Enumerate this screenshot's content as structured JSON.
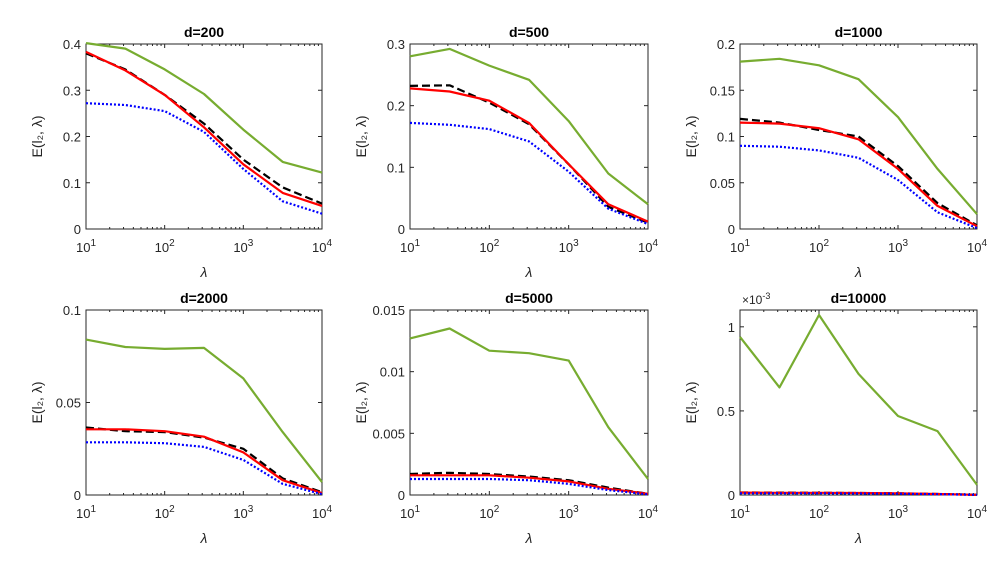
{
  "figure": {
    "x_label": "λ",
    "y_label": "E(l₂, λ)"
  },
  "colors": {
    "green": "#77ac30",
    "black": "#000000",
    "red": "#ff0000",
    "blue": "#0000ff",
    "axis": "#262626"
  },
  "chart_data": [
    {
      "type": "line",
      "title": "d=200",
      "xscale": "log",
      "xlim": [
        10,
        10000
      ],
      "ylim": [
        0,
        0.4
      ],
      "yticks": [
        0,
        0.1,
        0.2,
        0.3,
        0.4
      ],
      "yticklabels": [
        "0",
        "0.1",
        "0.2",
        "0.3",
        "0.4"
      ],
      "xticks": [
        10,
        100,
        1000,
        10000
      ],
      "xticklabels": [
        "10^1",
        "10^2",
        "10^3",
        "10^4"
      ],
      "x": [
        10,
        31.6,
        100,
        316,
        1000,
        3162,
        10000
      ],
      "series": [
        {
          "color": "green",
          "style": "solid",
          "values": [
            0.402,
            0.39,
            0.345,
            0.292,
            0.215,
            0.145,
            0.122
          ]
        },
        {
          "color": "black",
          "style": "dashed",
          "values": [
            0.38,
            0.345,
            0.29,
            0.228,
            0.15,
            0.09,
            0.055
          ]
        },
        {
          "color": "red",
          "style": "solid",
          "values": [
            0.383,
            0.343,
            0.29,
            0.22,
            0.14,
            0.078,
            0.05
          ]
        },
        {
          "color": "blue",
          "style": "dotted",
          "values": [
            0.272,
            0.268,
            0.255,
            0.21,
            0.13,
            0.06,
            0.033
          ]
        }
      ]
    },
    {
      "type": "line",
      "title": "d=500",
      "xscale": "log",
      "xlim": [
        10,
        10000
      ],
      "ylim": [
        0,
        0.3
      ],
      "yticks": [
        0,
        0.1,
        0.2,
        0.3
      ],
      "yticklabels": [
        "0",
        "0.1",
        "0.2",
        "0.3"
      ],
      "xticks": [
        10,
        100,
        1000,
        10000
      ],
      "xticklabels": [
        "10^1",
        "10^2",
        "10^3",
        "10^4"
      ],
      "x": [
        10,
        31.6,
        100,
        316,
        1000,
        3162,
        10000
      ],
      "series": [
        {
          "color": "green",
          "style": "solid",
          "values": [
            0.28,
            0.292,
            0.265,
            0.242,
            0.175,
            0.09,
            0.04
          ]
        },
        {
          "color": "black",
          "style": "dashed",
          "values": [
            0.232,
            0.233,
            0.205,
            0.17,
            0.105,
            0.036,
            0.01
          ]
        },
        {
          "color": "red",
          "style": "solid",
          "values": [
            0.228,
            0.223,
            0.208,
            0.172,
            0.105,
            0.04,
            0.012
          ]
        },
        {
          "color": "blue",
          "style": "dotted",
          "values": [
            0.172,
            0.169,
            0.162,
            0.142,
            0.093,
            0.033,
            0.008
          ]
        }
      ]
    },
    {
      "type": "line",
      "title": "d=1000",
      "xscale": "log",
      "xlim": [
        10,
        10000
      ],
      "ylim": [
        0,
        0.2
      ],
      "yticks": [
        0,
        0.05,
        0.1,
        0.15,
        0.2
      ],
      "yticklabels": [
        "0",
        "0.05",
        "0.1",
        "0.15",
        "0.2"
      ],
      "xticks": [
        10,
        100,
        1000,
        10000
      ],
      "xticklabels": [
        "10^1",
        "10^2",
        "10^3",
        "10^4"
      ],
      "x": [
        10,
        31.6,
        100,
        316,
        1000,
        3162,
        10000
      ],
      "series": [
        {
          "color": "green",
          "style": "solid",
          "values": [
            0.181,
            0.184,
            0.177,
            0.162,
            0.121,
            0.065,
            0.016
          ]
        },
        {
          "color": "black",
          "style": "dashed",
          "values": [
            0.119,
            0.115,
            0.107,
            0.1,
            0.068,
            0.028,
            0.004
          ]
        },
        {
          "color": "red",
          "style": "solid",
          "values": [
            0.115,
            0.114,
            0.109,
            0.097,
            0.065,
            0.025,
            0.003
          ]
        },
        {
          "color": "blue",
          "style": "dotted",
          "values": [
            0.09,
            0.089,
            0.085,
            0.077,
            0.053,
            0.018,
            0.001
          ]
        }
      ]
    },
    {
      "type": "line",
      "title": "d=2000",
      "xscale": "log",
      "xlim": [
        10,
        10000
      ],
      "ylim": [
        0,
        0.1
      ],
      "yticks": [
        0,
        0.05,
        0.1
      ],
      "yticklabels": [
        "0",
        "0.05",
        "0.1"
      ],
      "xticks": [
        10,
        100,
        1000,
        10000
      ],
      "xticklabels": [
        "10^1",
        "10^2",
        "10^3",
        "10^4"
      ],
      "x": [
        10,
        31.6,
        100,
        316,
        1000,
        3162,
        10000
      ],
      "series": [
        {
          "color": "green",
          "style": "solid",
          "values": [
            0.084,
            0.08,
            0.079,
            0.0795,
            0.063,
            0.034,
            0.007
          ]
        },
        {
          "color": "black",
          "style": "dashed",
          "values": [
            0.0365,
            0.0345,
            0.034,
            0.031,
            0.025,
            0.009,
            0.0015
          ]
        },
        {
          "color": "red",
          "style": "solid",
          "values": [
            0.0355,
            0.0355,
            0.0345,
            0.0315,
            0.023,
            0.008,
            0.001
          ]
        },
        {
          "color": "blue",
          "style": "dotted",
          "values": [
            0.0285,
            0.0285,
            0.028,
            0.026,
            0.019,
            0.006,
            0.0005
          ]
        }
      ]
    },
    {
      "type": "line",
      "title": "d=5000",
      "xscale": "log",
      "xlim": [
        10,
        10000
      ],
      "ylim": [
        0,
        0.015
      ],
      "yticks": [
        0,
        0.005,
        0.01,
        0.015
      ],
      "yticklabels": [
        "0",
        "0.005",
        "0.01",
        "0.015"
      ],
      "xticks": [
        10,
        100,
        1000,
        10000
      ],
      "xticklabels": [
        "10^1",
        "10^2",
        "10^3",
        "10^4"
      ],
      "x": [
        10,
        31.6,
        100,
        316,
        1000,
        3162,
        10000
      ],
      "series": [
        {
          "color": "green",
          "style": "solid",
          "values": [
            0.0127,
            0.0135,
            0.0117,
            0.0115,
            0.0109,
            0.0055,
            0.0013
          ]
        },
        {
          "color": "black",
          "style": "dashed",
          "values": [
            0.0017,
            0.0018,
            0.0017,
            0.0015,
            0.0012,
            0.0006,
            0.0001
          ]
        },
        {
          "color": "red",
          "style": "solid",
          "values": [
            0.0016,
            0.0016,
            0.0016,
            0.0014,
            0.0011,
            0.0005,
            0.0001
          ]
        },
        {
          "color": "blue",
          "style": "dotted",
          "values": [
            0.0013,
            0.0013,
            0.0013,
            0.0012,
            0.0009,
            0.0004,
            5e-05
          ]
        }
      ]
    },
    {
      "type": "line",
      "title": "d=10000",
      "xscale": "log",
      "xlim": [
        10,
        10000
      ],
      "ylim": [
        0,
        0.0011
      ],
      "yticks": [
        0,
        0.0005,
        0.001
      ],
      "yticklabels": [
        "0",
        "0.5",
        "1"
      ],
      "yexponent": "×10^-3",
      "xticks": [
        10,
        100,
        1000,
        10000
      ],
      "xticklabels": [
        "10^1",
        "10^2",
        "10^3",
        "10^4"
      ],
      "x": [
        10,
        31.6,
        100,
        316,
        1000,
        3162,
        10000
      ],
      "series": [
        {
          "color": "green",
          "style": "solid",
          "values": [
            0.00094,
            0.00064,
            0.00107,
            0.00072,
            0.00047,
            0.00038,
            6e-05
          ]
        },
        {
          "color": "black",
          "style": "dashed",
          "values": [
            1.5e-05,
            1.4e-05,
            1.3e-05,
            1.2e-05,
            1e-05,
            6e-06,
            1e-06
          ]
        },
        {
          "color": "red",
          "style": "solid",
          "values": [
            1.4e-05,
            1.3e-05,
            1.3e-05,
            1.2e-05,
            1e-05,
            6e-06,
            1e-06
          ]
        },
        {
          "color": "blue",
          "style": "dotted",
          "values": [
            1e-05,
            1e-05,
            1e-05,
            9e-06,
            8e-06,
            5e-06,
            1e-06
          ]
        }
      ]
    }
  ]
}
